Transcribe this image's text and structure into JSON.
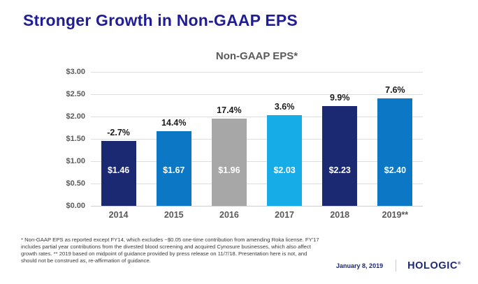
{
  "slide": {
    "title": "Stronger Growth in Non-GAAP EPS",
    "footnote": "* Non-GAAP EPS as reported except FY14, which excludes ~$0.05 one-time contribution from amending Roka license. FY'17 includes partial year contributions from the divested blood screening and acquired Cynosure businesses, which also affect growth rates. ** 2019 based on midpoint of guidance provided by press release on 11/7/18.  Presentation here is not, and should not be construed as, re-affirmation of guidance.",
    "footer": {
      "date": "January 8, 2019",
      "logo": "HOLOGIC",
      "logo_mark": "®"
    }
  },
  "chart_data": {
    "type": "bar",
    "title": "Non-GAAP EPS*",
    "categories": [
      "2014",
      "2015",
      "2016",
      "2017",
      "2018",
      "2019**"
    ],
    "values": [
      1.46,
      1.67,
      1.96,
      2.03,
      2.23,
      2.4
    ],
    "value_labels": [
      "$1.46",
      "$1.67",
      "$1.96",
      "$2.03",
      "$2.23",
      "$2.40"
    ],
    "growth_labels": [
      "-2.7%",
      "14.4%",
      "17.4%",
      "3.6%",
      "9.9%",
      "7.6%"
    ],
    "bar_colors": [
      "#1B2973",
      "#0C77C4",
      "#A7A7A7",
      "#16ACE8",
      "#1B2973",
      "#0C77C4"
    ],
    "xlabel": "",
    "ylabel": "",
    "ylim": [
      0,
      3.0
    ],
    "ytick_labels": [
      "$3.00",
      "$2.50",
      "$2.00",
      "$1.50",
      "$1.00",
      "$0.50",
      "$0.00"
    ],
    "ytick_values": [
      3.0,
      2.5,
      2.0,
      1.5,
      1.0,
      0.5,
      0.0
    ],
    "grid": true,
    "legend": "none"
  }
}
